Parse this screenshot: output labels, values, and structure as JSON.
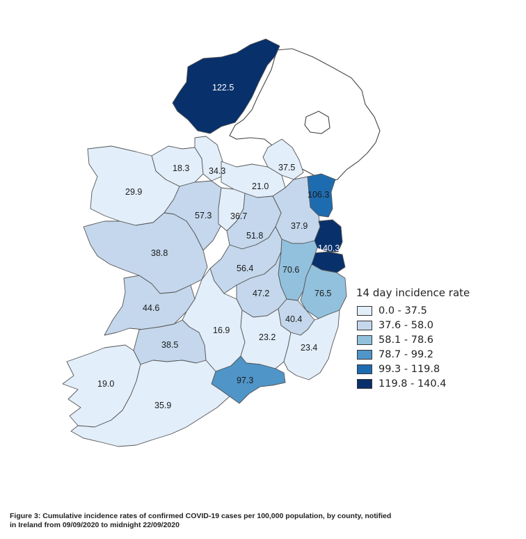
{
  "legend": {
    "title": "14 day incidence rate",
    "items": [
      {
        "label": "0.0 - 37.5",
        "color": "#e2eefa"
      },
      {
        "label": "37.6 - 58.0",
        "color": "#c4d7ec"
      },
      {
        "label": "58.1 - 78.6",
        "color": "#92c1dd"
      },
      {
        "label": "78.7 - 99.2",
        "color": "#4f95c8"
      },
      {
        "label": "99.3 - 119.8",
        "color": "#1e6cb0"
      },
      {
        "label": "119.8 - 140.4",
        "color": "#08306b"
      }
    ]
  },
  "counties": [
    {
      "name": "Donegal",
      "value": "122.5"
    },
    {
      "name": "Sligo",
      "value": "18.3"
    },
    {
      "name": "Leitrim",
      "value": "34.3"
    },
    {
      "name": "Cavan",
      "value": "21.0"
    },
    {
      "name": "Monaghan",
      "value": "37.5"
    },
    {
      "name": "Mayo",
      "value": "29.9"
    },
    {
      "name": "Louth",
      "value": "106.3"
    },
    {
      "name": "Roscommon",
      "value": "57.3"
    },
    {
      "name": "Longford",
      "value": "36.7"
    },
    {
      "name": "Meath",
      "value": "37.9"
    },
    {
      "name": "Westmeath",
      "value": "51.8"
    },
    {
      "name": "Galway",
      "value": "38.8"
    },
    {
      "name": "Dublin",
      "value": "140.3"
    },
    {
      "name": "Offaly",
      "value": "56.4"
    },
    {
      "name": "Kildare",
      "value": "70.6"
    },
    {
      "name": "Laois",
      "value": "47.2"
    },
    {
      "name": "Wicklow",
      "value": "76.5"
    },
    {
      "name": "Clare",
      "value": "44.6"
    },
    {
      "name": "Carlow",
      "value": "40.4"
    },
    {
      "name": "Tipperary",
      "value": "16.9"
    },
    {
      "name": "Kilkenny",
      "value": "23.2"
    },
    {
      "name": "Wexford",
      "value": "23.4"
    },
    {
      "name": "Limerick",
      "value": "38.5"
    },
    {
      "name": "Kerry",
      "value": "19.0"
    },
    {
      "name": "Waterford",
      "value": "97.3"
    },
    {
      "name": "Cork",
      "value": "35.9"
    }
  ],
  "caption": {
    "line1": "Figure 3: Cumulative incidence rates of confirmed COVID-19 cases per 100,000 population, by county, notified",
    "line2": "in Ireland from 09/09/2020 to midnight 22/09/2020"
  }
}
